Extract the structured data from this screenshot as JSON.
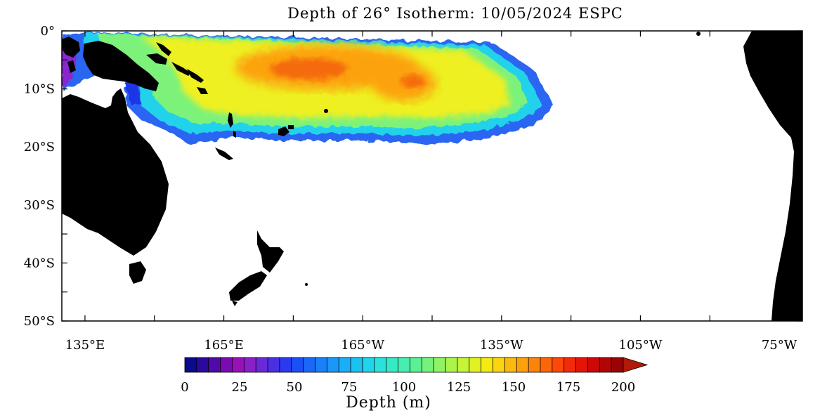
{
  "title": "Depth of 26° Isotherm: 10/05/2024 ESPC",
  "map": {
    "lon_range": [
      130,
      290
    ],
    "lat_range": [
      -50,
      0
    ],
    "y_ticks": [
      "0°",
      "10°S",
      "20°S",
      "30°S",
      "40°S",
      "50°S"
    ],
    "x_ticks": [
      "135°E",
      "165°E",
      "165°W",
      "135°W",
      "105°W",
      "75°W"
    ],
    "land_color": "#000000",
    "ocean_color": "#ffffff"
  },
  "colorbar": {
    "label": "Depth (m)",
    "tick_labels": [
      "0",
      "25",
      "50",
      "75",
      "100",
      "125",
      "150",
      "175",
      "200"
    ],
    "min": 0,
    "max": 200,
    "step": 5,
    "extend": "max",
    "colors": [
      "#0a0a8c",
      "#2a0a9c",
      "#500aa8",
      "#7a0ab4",
      "#9a10b8",
      "#8a20c8",
      "#6a28d6",
      "#4a30e2",
      "#2a3af0",
      "#1a50f4",
      "#1a68f6",
      "#1a80f8",
      "#1a98f8",
      "#1aaef6",
      "#1ac2f2",
      "#20d4ea",
      "#2ae2dc",
      "#36eac6",
      "#48eeb0",
      "#5cf096",
      "#74f27c",
      "#8ef464",
      "#aaf44c",
      "#c6f436",
      "#e0f222",
      "#f6ea14",
      "#fcd412",
      "#fcba10",
      "#fca00e",
      "#fc840c",
      "#fc660a",
      "#fc4808",
      "#f42a08",
      "#e41408",
      "#cc0808",
      "#b00606",
      "#9a0404",
      "#b01a08"
    ]
  }
}
